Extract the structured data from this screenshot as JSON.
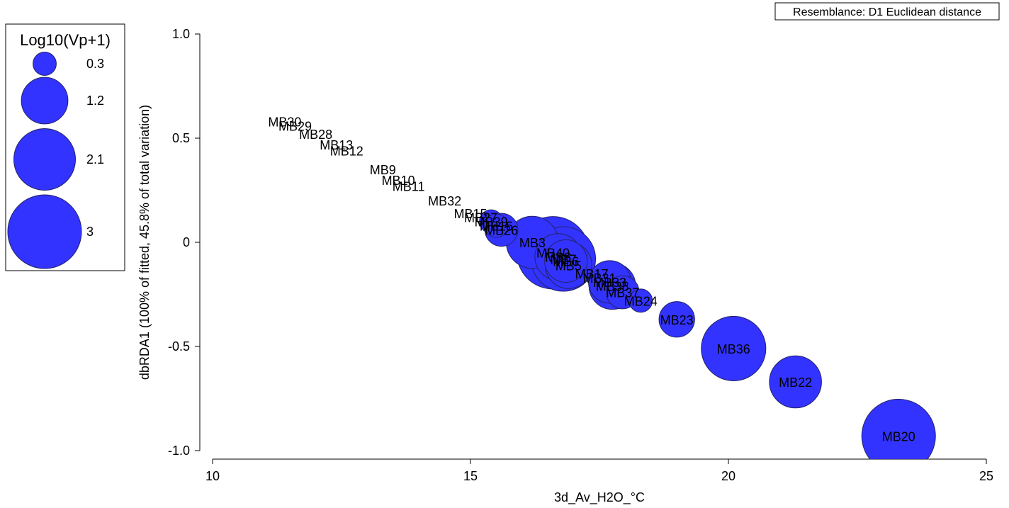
{
  "chart_data": {
    "type": "scatter",
    "title": "",
    "xlabel": "3d_Av_H2O_°C",
    "ylabel": "dbRDA1 (100% of fitted, 45.8% of total variation)",
    "xlim": [
      10,
      25
    ],
    "ylim": [
      -1.0,
      1.0
    ],
    "xticks": [
      10,
      15,
      20,
      25
    ],
    "xtick_labels": [
      "10",
      "15",
      "20",
      "25"
    ],
    "yticks": [
      1.0,
      0.5,
      0,
      -0.5,
      -1.0
    ],
    "ytick_labels": [
      "1.0",
      "0.5",
      "0",
      "-0.5",
      "-1.0"
    ],
    "grid": false,
    "annotation": "Resemblance: D1 Euclidean distance",
    "bubble_color": "#3333ff",
    "legend": {
      "title": "Log10(Vp+1)",
      "title_color": "#1a1aff",
      "placement": "top-left",
      "entries": [
        {
          "label": "0.3",
          "value": 0.3
        },
        {
          "label": "1.2",
          "value": 1.2
        },
        {
          "label": "2.1",
          "value": 2.1
        },
        {
          "label": "3",
          "value": 3
        }
      ]
    },
    "points": [
      {
        "label": "MB30",
        "x": 11.4,
        "y": 0.58,
        "size": 0
      },
      {
        "label": "MB29",
        "x": 11.6,
        "y": 0.56,
        "size": 0
      },
      {
        "label": "MB28",
        "x": 12.0,
        "y": 0.52,
        "size": 0
      },
      {
        "label": "MB13",
        "x": 12.4,
        "y": 0.47,
        "size": 0
      },
      {
        "label": "MB12",
        "x": 12.6,
        "y": 0.44,
        "size": 0
      },
      {
        "label": "MB9",
        "x": 13.3,
        "y": 0.35,
        "size": 0
      },
      {
        "label": "MB10",
        "x": 13.6,
        "y": 0.3,
        "size": 0
      },
      {
        "label": "MB11",
        "x": 13.8,
        "y": 0.27,
        "size": 0
      },
      {
        "label": "MB32",
        "x": 14.5,
        "y": 0.2,
        "size": 0
      },
      {
        "label": "MB15",
        "x": 15.0,
        "y": 0.14,
        "size": 0
      },
      {
        "label": "MB27",
        "x": 15.2,
        "y": 0.12,
        "size": 0
      },
      {
        "label": "MB39",
        "x": 15.4,
        "y": 0.1,
        "size": 0.3
      },
      {
        "label": "MB16",
        "x": 15.5,
        "y": 0.08,
        "size": 0.3
      },
      {
        "label": "MB26",
        "x": 15.6,
        "y": 0.06,
        "size": 0.6
      },
      {
        "label": "MB3",
        "x": 16.2,
        "y": 0.0,
        "size": 1.5
      },
      {
        "label": "MB40",
        "x": 16.6,
        "y": -0.05,
        "size": 2.9
      },
      {
        "label": "MB8",
        "x": 16.7,
        "y": -0.07,
        "size": 1.2
      },
      {
        "label": "MB7",
        "x": 16.8,
        "y": -0.08,
        "size": 2.3
      },
      {
        "label": "MB6",
        "x": 16.85,
        "y": -0.09,
        "size": 1.0
      },
      {
        "label": "MB5",
        "x": 16.9,
        "y": -0.11,
        "size": 1.2
      },
      {
        "label": "MB17",
        "x": 17.35,
        "y": -0.15,
        "size": 0
      },
      {
        "label": "MB31",
        "x": 17.5,
        "y": -0.17,
        "size": 0
      },
      {
        "label": "MB33",
        "x": 17.7,
        "y": -0.19,
        "size": 1.0
      },
      {
        "label": "MB38",
        "x": 17.75,
        "y": -0.21,
        "size": 1.2
      },
      {
        "label": "MB37",
        "x": 17.95,
        "y": -0.24,
        "size": 0.6
      },
      {
        "label": "MB24",
        "x": 18.3,
        "y": -0.28,
        "size": 0.3
      },
      {
        "label": "MB23",
        "x": 19.0,
        "y": -0.37,
        "size": 0.7
      },
      {
        "label": "MB36",
        "x": 20.1,
        "y": -0.51,
        "size": 2.3
      },
      {
        "label": "MB22",
        "x": 21.3,
        "y": -0.67,
        "size": 1.5
      },
      {
        "label": "MB20",
        "x": 23.3,
        "y": -0.93,
        "size": 3.0
      }
    ]
  }
}
